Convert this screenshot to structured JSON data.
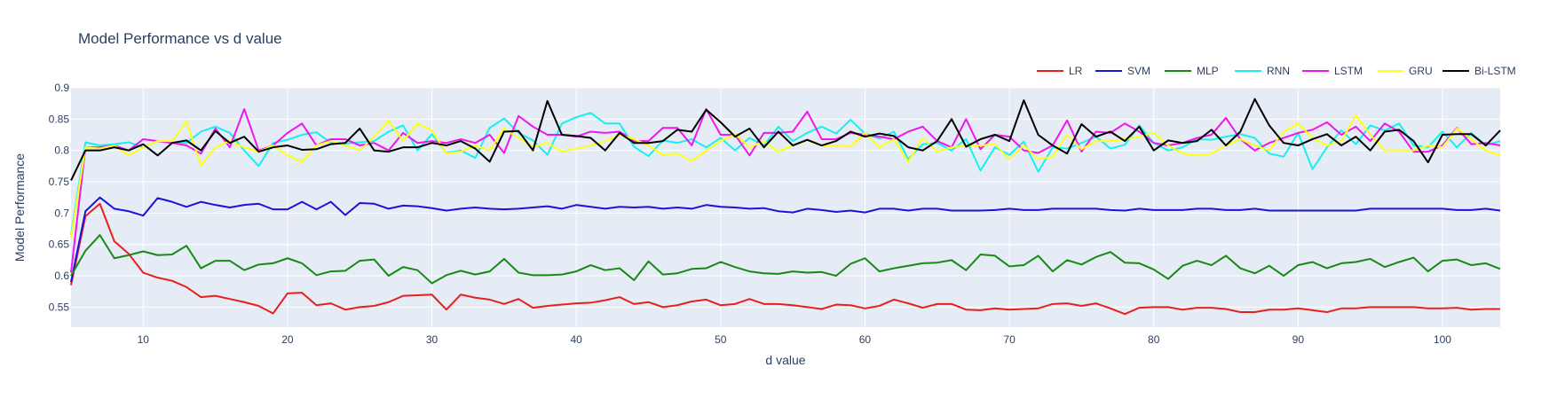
{
  "chart_data": {
    "type": "line",
    "title": "Model Performance vs d value",
    "xlabel": "d value",
    "ylabel": "Model Performance",
    "xlim": [
      5,
      104
    ],
    "ylim": [
      0.518,
      0.9
    ],
    "xticks": [
      10,
      20,
      30,
      40,
      50,
      60,
      70,
      80,
      90,
      100
    ],
    "yticks": [
      0.55,
      0.6,
      0.65,
      0.7,
      0.75,
      0.8,
      0.85,
      0.9
    ],
    "ytick_labels": [
      "0.55",
      "0.6",
      "0.65",
      "0.7",
      "0.75",
      "0.8",
      "0.85",
      "0.9"
    ],
    "grid": true,
    "legend_position": "top-right",
    "x": [
      5,
      6,
      7,
      8,
      9,
      10,
      11,
      12,
      13,
      14,
      15,
      16,
      17,
      18,
      19,
      20,
      21,
      22,
      23,
      24,
      25,
      26,
      27,
      28,
      29,
      30,
      31,
      32,
      33,
      34,
      35,
      36,
      37,
      38,
      39,
      40,
      41,
      42,
      43,
      44,
      45,
      46,
      47,
      48,
      49,
      50,
      51,
      52,
      53,
      54,
      55,
      56,
      57,
      58,
      59,
      60,
      61,
      62,
      63,
      64,
      65,
      66,
      67,
      68,
      69,
      70,
      71,
      72,
      73,
      74,
      75,
      76,
      77,
      78,
      79,
      80,
      81,
      82,
      83,
      84,
      85,
      86,
      87,
      88,
      89,
      90,
      91,
      92,
      93,
      94,
      95,
      96,
      97,
      98,
      99,
      100,
      101,
      102,
      103,
      104
    ],
    "series": [
      {
        "name": "LR",
        "color": "#e8201c",
        "values": [
          0.585,
          0.695,
          0.715,
          0.655,
          0.635,
          0.605,
          0.597,
          0.592,
          0.582,
          0.566,
          0.568,
          0.563,
          0.558,
          0.552,
          0.54,
          0.572,
          0.573,
          0.553,
          0.556,
          0.546,
          0.55,
          0.552,
          0.558,
          0.568,
          0.569,
          0.57,
          0.546,
          0.57,
          0.565,
          0.562,
          0.555,
          0.563,
          0.549,
          0.552,
          0.554,
          0.556,
          0.557,
          0.561,
          0.566,
          0.555,
          0.558,
          0.55,
          0.553,
          0.559,
          0.562,
          0.553,
          0.555,
          0.563,
          0.555,
          0.555,
          0.553,
          0.55,
          0.547,
          0.554,
          0.553,
          0.548,
          0.552,
          0.562,
          0.556,
          0.549,
          0.555,
          0.555,
          0.546,
          0.545,
          0.548,
          0.546,
          0.547,
          0.548,
          0.555,
          0.556,
          0.552,
          0.556,
          0.548,
          0.539,
          0.549,
          0.55,
          0.55,
          0.546,
          0.549,
          0.549,
          0.547,
          0.542,
          0.542,
          0.546,
          0.546,
          0.548,
          0.545,
          0.542,
          0.548,
          0.548,
          0.55,
          0.55,
          0.55,
          0.55,
          0.548,
          0.548,
          0.549,
          0.546,
          0.547,
          0.547
        ]
      },
      {
        "name": "SVM",
        "color": "#1c13d8",
        "values": [
          0.59,
          0.703,
          0.725,
          0.707,
          0.703,
          0.696,
          0.724,
          0.718,
          0.71,
          0.718,
          0.713,
          0.709,
          0.713,
          0.715,
          0.706,
          0.706,
          0.718,
          0.706,
          0.718,
          0.697,
          0.716,
          0.715,
          0.707,
          0.712,
          0.711,
          0.708,
          0.704,
          0.707,
          0.709,
          0.707,
          0.706,
          0.707,
          0.709,
          0.711,
          0.707,
          0.713,
          0.71,
          0.707,
          0.71,
          0.709,
          0.71,
          0.707,
          0.709,
          0.707,
          0.713,
          0.71,
          0.709,
          0.707,
          0.708,
          0.703,
          0.701,
          0.707,
          0.705,
          0.702,
          0.704,
          0.701,
          0.707,
          0.707,
          0.704,
          0.707,
          0.707,
          0.704,
          0.704,
          0.704,
          0.705,
          0.707,
          0.705,
          0.705,
          0.707,
          0.707,
          0.707,
          0.707,
          0.705,
          0.704,
          0.707,
          0.705,
          0.705,
          0.705,
          0.707,
          0.707,
          0.705,
          0.705,
          0.707,
          0.704,
          0.704,
          0.704,
          0.704,
          0.704,
          0.704,
          0.704,
          0.707,
          0.707,
          0.707,
          0.707,
          0.707,
          0.707,
          0.705,
          0.705,
          0.707,
          0.704
        ]
      },
      {
        "name": "MLP",
        "color": "#178a14",
        "values": [
          0.6,
          0.64,
          0.665,
          0.628,
          0.633,
          0.639,
          0.633,
          0.634,
          0.648,
          0.612,
          0.624,
          0.624,
          0.609,
          0.618,
          0.62,
          0.628,
          0.62,
          0.601,
          0.607,
          0.608,
          0.624,
          0.626,
          0.6,
          0.614,
          0.609,
          0.588,
          0.601,
          0.608,
          0.602,
          0.607,
          0.627,
          0.605,
          0.601,
          0.601,
          0.602,
          0.607,
          0.617,
          0.609,
          0.612,
          0.593,
          0.623,
          0.602,
          0.604,
          0.611,
          0.612,
          0.622,
          0.614,
          0.607,
          0.604,
          0.603,
          0.607,
          0.605,
          0.606,
          0.6,
          0.619,
          0.628,
          0.607,
          0.612,
          0.616,
          0.62,
          0.621,
          0.625,
          0.609,
          0.634,
          0.632,
          0.615,
          0.617,
          0.632,
          0.607,
          0.625,
          0.618,
          0.63,
          0.638,
          0.621,
          0.62,
          0.61,
          0.595,
          0.616,
          0.624,
          0.617,
          0.632,
          0.612,
          0.604,
          0.616,
          0.6,
          0.617,
          0.622,
          0.612,
          0.62,
          0.622,
          0.627,
          0.614,
          0.622,
          0.629,
          0.607,
          0.624,
          0.626,
          0.617,
          0.62,
          0.611
        ]
      },
      {
        "name": "RNN",
        "color": "#17f0ee",
        "values": [
          0.665,
          0.813,
          0.808,
          0.81,
          0.813,
          0.805,
          0.815,
          0.813,
          0.812,
          0.83,
          0.838,
          0.828,
          0.8,
          0.775,
          0.812,
          0.817,
          0.825,
          0.829,
          0.812,
          0.811,
          0.813,
          0.815,
          0.83,
          0.84,
          0.8,
          0.826,
          0.796,
          0.8,
          0.788,
          0.836,
          0.851,
          0.828,
          0.816,
          0.793,
          0.843,
          0.853,
          0.86,
          0.843,
          0.843,
          0.806,
          0.791,
          0.816,
          0.812,
          0.818,
          0.805,
          0.82,
          0.8,
          0.82,
          0.808,
          0.838,
          0.815,
          0.828,
          0.838,
          0.827,
          0.849,
          0.827,
          0.819,
          0.83,
          0.786,
          0.81,
          0.812,
          0.8,
          0.818,
          0.768,
          0.805,
          0.793,
          0.814,
          0.766,
          0.805,
          0.803,
          0.812,
          0.822,
          0.803,
          0.809,
          0.84,
          0.812,
          0.8,
          0.805,
          0.818,
          0.817,
          0.822,
          0.826,
          0.82,
          0.795,
          0.79,
          0.828,
          0.77,
          0.805,
          0.832,
          0.81,
          0.84,
          0.832,
          0.843,
          0.808,
          0.805,
          0.83,
          0.805,
          0.828,
          0.808,
          0.815
        ]
      },
      {
        "name": "LSTM",
        "color": "#ee17ee",
        "values": [
          0.605,
          0.805,
          0.805,
          0.808,
          0.8,
          0.818,
          0.815,
          0.812,
          0.808,
          0.795,
          0.835,
          0.805,
          0.866,
          0.8,
          0.808,
          0.828,
          0.843,
          0.808,
          0.818,
          0.818,
          0.808,
          0.812,
          0.8,
          0.828,
          0.812,
          0.815,
          0.812,
          0.818,
          0.812,
          0.825,
          0.796,
          0.855,
          0.838,
          0.825,
          0.825,
          0.822,
          0.83,
          0.828,
          0.83,
          0.815,
          0.815,
          0.836,
          0.836,
          0.808,
          0.866,
          0.825,
          0.825,
          0.792,
          0.828,
          0.828,
          0.83,
          0.862,
          0.818,
          0.818,
          0.828,
          0.825,
          0.822,
          0.818,
          0.83,
          0.838,
          0.815,
          0.805,
          0.85,
          0.802,
          0.825,
          0.822,
          0.8,
          0.796,
          0.808,
          0.848,
          0.798,
          0.83,
          0.828,
          0.843,
          0.83,
          0.812,
          0.808,
          0.812,
          0.82,
          0.825,
          0.852,
          0.818,
          0.8,
          0.812,
          0.82,
          0.828,
          0.833,
          0.845,
          0.825,
          0.838,
          0.815,
          0.843,
          0.83,
          0.798,
          0.798,
          0.808,
          0.836,
          0.81,
          0.812,
          0.808
        ]
      },
      {
        "name": "GRU",
        "color": "#ffff17",
        "values": [
          0.66,
          0.805,
          0.803,
          0.808,
          0.792,
          0.805,
          0.815,
          0.815,
          0.846,
          0.776,
          0.805,
          0.815,
          0.805,
          0.798,
          0.808,
          0.792,
          0.782,
          0.808,
          0.815,
          0.808,
          0.8,
          0.822,
          0.848,
          0.815,
          0.843,
          0.832,
          0.795,
          0.798,
          0.808,
          0.8,
          0.835,
          0.82,
          0.806,
          0.812,
          0.798,
          0.803,
          0.808,
          0.815,
          0.825,
          0.818,
          0.808,
          0.793,
          0.795,
          0.783,
          0.8,
          0.815,
          0.826,
          0.805,
          0.815,
          0.798,
          0.808,
          0.816,
          0.808,
          0.808,
          0.806,
          0.828,
          0.805,
          0.818,
          0.782,
          0.82,
          0.798,
          0.805,
          0.808,
          0.808,
          0.81,
          0.786,
          0.808,
          0.786,
          0.79,
          0.825,
          0.802,
          0.815,
          0.815,
          0.818,
          0.822,
          0.828,
          0.808,
          0.795,
          0.792,
          0.795,
          0.808,
          0.818,
          0.808,
          0.8,
          0.83,
          0.843,
          0.82,
          0.808,
          0.815,
          0.856,
          0.825,
          0.8,
          0.8,
          0.8,
          0.808,
          0.805,
          0.835,
          0.818,
          0.8,
          0.792
        ]
      },
      {
        "name": "Bi-LSTM",
        "color": "#000000",
        "values": [
          0.752,
          0.8,
          0.8,
          0.805,
          0.8,
          0.81,
          0.792,
          0.812,
          0.816,
          0.8,
          0.831,
          0.812,
          0.822,
          0.798,
          0.805,
          0.808,
          0.801,
          0.802,
          0.81,
          0.812,
          0.835,
          0.8,
          0.798,
          0.805,
          0.805,
          0.812,
          0.808,
          0.815,
          0.803,
          0.782,
          0.83,
          0.831,
          0.8,
          0.879,
          0.825,
          0.823,
          0.82,
          0.8,
          0.828,
          0.812,
          0.812,
          0.815,
          0.833,
          0.83,
          0.865,
          0.845,
          0.822,
          0.835,
          0.805,
          0.83,
          0.808,
          0.817,
          0.808,
          0.815,
          0.83,
          0.822,
          0.827,
          0.823,
          0.805,
          0.8,
          0.815,
          0.85,
          0.806,
          0.818,
          0.825,
          0.815,
          0.88,
          0.825,
          0.808,
          0.795,
          0.842,
          0.822,
          0.83,
          0.815,
          0.838,
          0.8,
          0.816,
          0.812,
          0.815,
          0.833,
          0.808,
          0.83,
          0.882,
          0.84,
          0.812,
          0.808,
          0.818,
          0.826,
          0.808,
          0.822,
          0.8,
          0.83,
          0.833,
          0.815,
          0.781,
          0.825,
          0.826,
          0.826,
          0.808,
          0.832
        ]
      }
    ]
  }
}
